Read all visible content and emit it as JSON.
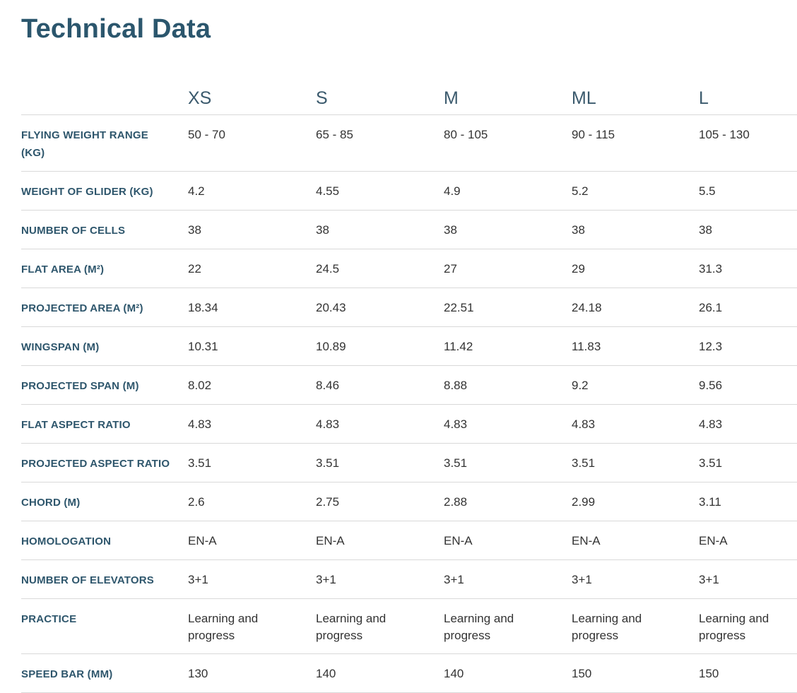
{
  "page": {
    "title": "Technical Data"
  },
  "colors": {
    "title": "#2b566d",
    "header": "#3b5a6d",
    "label": "#2e566c",
    "value": "#333333",
    "divider": "#d9d9d9",
    "background": "#ffffff"
  },
  "table": {
    "sizes": [
      "XS",
      "S",
      "M",
      "ML",
      "L"
    ],
    "rows": [
      {
        "label": "FLYING WEIGHT RANGE (KG)",
        "values": [
          "50 - 70",
          "65 - 85",
          "80 - 105",
          "90 - 115",
          "105 - 130"
        ]
      },
      {
        "label": "WEIGHT OF GLIDER (KG)",
        "values": [
          "4.2",
          "4.55",
          "4.9",
          "5.2",
          "5.5"
        ]
      },
      {
        "label": "NUMBER OF CELLS",
        "values": [
          "38",
          "38",
          "38",
          "38",
          "38"
        ]
      },
      {
        "label": "FLAT AREA (M²)",
        "values": [
          "22",
          "24.5",
          "27",
          "29",
          "31.3"
        ]
      },
      {
        "label": "PROJECTED AREA (M²)",
        "values": [
          "18.34",
          "20.43",
          "22.51",
          "24.18",
          "26.1"
        ]
      },
      {
        "label": "WINGSPAN (M)",
        "values": [
          "10.31",
          "10.89",
          "11.42",
          "11.83",
          "12.3"
        ]
      },
      {
        "label": "PROJECTED SPAN (M)",
        "values": [
          "8.02",
          "8.46",
          "8.88",
          "9.2",
          "9.56"
        ]
      },
      {
        "label": "FLAT ASPECT RATIO",
        "values": [
          "4.83",
          "4.83",
          "4.83",
          "4.83",
          "4.83"
        ]
      },
      {
        "label": "PROJECTED ASPECT RATIO",
        "values": [
          "3.51",
          "3.51",
          "3.51",
          "3.51",
          "3.51"
        ]
      },
      {
        "label": "CHORD (M)",
        "values": [
          "2.6",
          "2.75",
          "2.88",
          "2.99",
          "3.11"
        ]
      },
      {
        "label": "HOMOLOGATION",
        "values": [
          "EN-A",
          "EN-A",
          "EN-A",
          "EN-A",
          "EN-A"
        ]
      },
      {
        "label": "NUMBER OF ELEVATORS",
        "values": [
          "3+1",
          "3+1",
          "3+1",
          "3+1",
          "3+1"
        ]
      },
      {
        "label": "PRACTICE",
        "values": [
          "Learning and progress",
          "Learning and progress",
          "Learning and progress",
          "Learning and progress",
          "Learning and progress"
        ]
      },
      {
        "label": "SPEED BAR (MM)",
        "values": [
          "130",
          "140",
          "140",
          "150",
          "150"
        ]
      }
    ]
  }
}
